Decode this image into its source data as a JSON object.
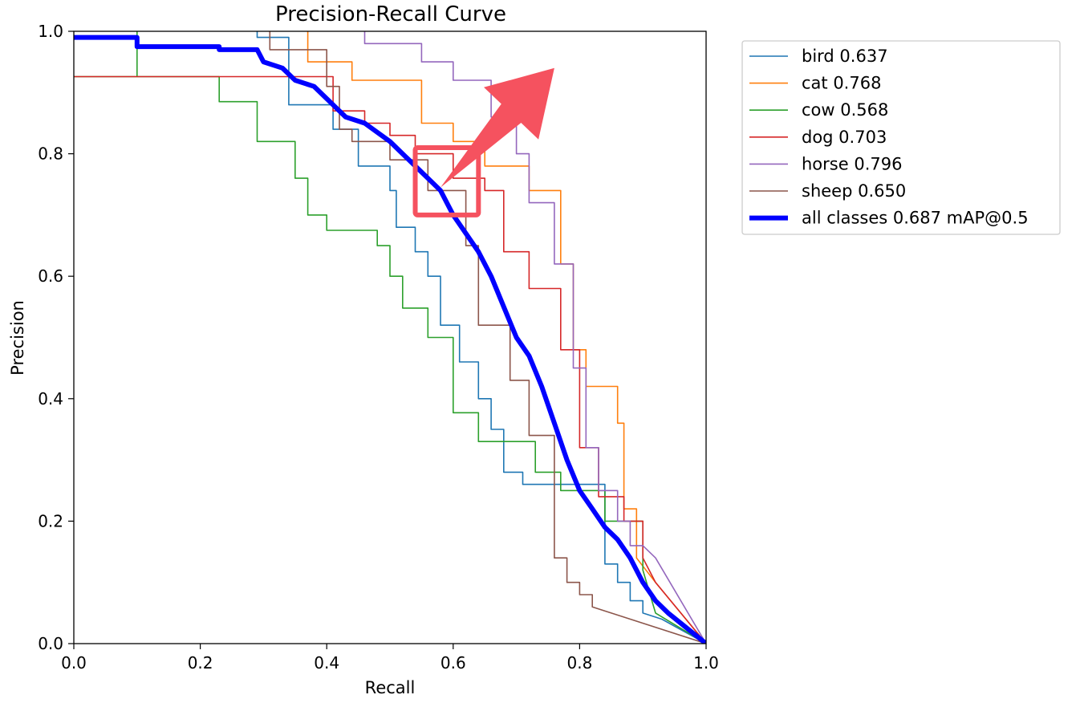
{
  "chart_data": {
    "type": "line",
    "title": "Precision-Recall Curve",
    "xlabel": "Recall",
    "ylabel": "Precision",
    "xlim": [
      0.0,
      1.0
    ],
    "ylim": [
      0.0,
      1.0
    ],
    "xticks": [
      "0.0",
      "0.2",
      "0.4",
      "0.6",
      "0.8",
      "1.0"
    ],
    "yticks": [
      "0.0",
      "0.2",
      "0.4",
      "0.6",
      "0.8",
      "1.0"
    ],
    "grid": false,
    "legend_position": "outside-top-right",
    "series": [
      {
        "name": "bird",
        "label": "bird 0.637",
        "color": "#1f77b4",
        "width": "thin",
        "points": [
          [
            0.29,
            1.0
          ],
          [
            0.29,
            0.99
          ],
          [
            0.34,
            0.99
          ],
          [
            0.34,
            0.88
          ],
          [
            0.41,
            0.88
          ],
          [
            0.41,
            0.84
          ],
          [
            0.45,
            0.84
          ],
          [
            0.45,
            0.78
          ],
          [
            0.5,
            0.78
          ],
          [
            0.5,
            0.74
          ],
          [
            0.51,
            0.74
          ],
          [
            0.51,
            0.68
          ],
          [
            0.54,
            0.68
          ],
          [
            0.54,
            0.64
          ],
          [
            0.56,
            0.64
          ],
          [
            0.56,
            0.6
          ],
          [
            0.58,
            0.6
          ],
          [
            0.58,
            0.52
          ],
          [
            0.61,
            0.52
          ],
          [
            0.61,
            0.46
          ],
          [
            0.64,
            0.46
          ],
          [
            0.64,
            0.4
          ],
          [
            0.66,
            0.4
          ],
          [
            0.66,
            0.35
          ],
          [
            0.68,
            0.35
          ],
          [
            0.68,
            0.28
          ],
          [
            0.71,
            0.28
          ],
          [
            0.71,
            0.26
          ],
          [
            0.84,
            0.26
          ],
          [
            0.84,
            0.13
          ],
          [
            0.86,
            0.13
          ],
          [
            0.86,
            0.1
          ],
          [
            0.88,
            0.1
          ],
          [
            0.88,
            0.07
          ],
          [
            0.9,
            0.07
          ],
          [
            0.9,
            0.05
          ],
          [
            0.93,
            0.04
          ],
          [
            1.0,
            0.0
          ]
        ]
      },
      {
        "name": "cat",
        "label": "cat 0.768",
        "color": "#ff7f0e",
        "width": "thin",
        "points": [
          [
            0.37,
            1.0
          ],
          [
            0.37,
            0.95
          ],
          [
            0.44,
            0.95
          ],
          [
            0.44,
            0.92
          ],
          [
            0.55,
            0.92
          ],
          [
            0.55,
            0.85
          ],
          [
            0.6,
            0.85
          ],
          [
            0.6,
            0.82
          ],
          [
            0.65,
            0.82
          ],
          [
            0.65,
            0.78
          ],
          [
            0.72,
            0.78
          ],
          [
            0.72,
            0.74
          ],
          [
            0.77,
            0.74
          ],
          [
            0.77,
            0.62
          ],
          [
            0.79,
            0.62
          ],
          [
            0.79,
            0.48
          ],
          [
            0.81,
            0.48
          ],
          [
            0.81,
            0.42
          ],
          [
            0.86,
            0.42
          ],
          [
            0.86,
            0.36
          ],
          [
            0.87,
            0.36
          ],
          [
            0.87,
            0.22
          ],
          [
            0.89,
            0.22
          ],
          [
            0.89,
            0.14
          ],
          [
            0.92,
            0.1
          ],
          [
            1.0,
            0.0
          ]
        ]
      },
      {
        "name": "cow",
        "label": "cow 0.568",
        "color": "#2ca02c",
        "width": "thin",
        "points": [
          [
            0.0,
            0.926
          ],
          [
            0.1,
            0.926
          ],
          [
            0.1,
            1.0
          ],
          [
            0.1,
            0.926
          ],
          [
            0.23,
            0.926
          ],
          [
            0.23,
            0.885
          ],
          [
            0.29,
            0.885
          ],
          [
            0.29,
            0.82
          ],
          [
            0.35,
            0.82
          ],
          [
            0.35,
            0.76
          ],
          [
            0.37,
            0.76
          ],
          [
            0.37,
            0.7
          ],
          [
            0.4,
            0.7
          ],
          [
            0.4,
            0.675
          ],
          [
            0.48,
            0.675
          ],
          [
            0.48,
            0.65
          ],
          [
            0.5,
            0.65
          ],
          [
            0.5,
            0.6
          ],
          [
            0.52,
            0.6
          ],
          [
            0.52,
            0.548
          ],
          [
            0.56,
            0.548
          ],
          [
            0.56,
            0.5
          ],
          [
            0.6,
            0.5
          ],
          [
            0.6,
            0.377
          ],
          [
            0.64,
            0.377
          ],
          [
            0.64,
            0.33
          ],
          [
            0.73,
            0.33
          ],
          [
            0.73,
            0.28
          ],
          [
            0.77,
            0.28
          ],
          [
            0.77,
            0.25
          ],
          [
            0.84,
            0.25
          ],
          [
            0.84,
            0.2
          ],
          [
            0.9,
            0.2
          ],
          [
            0.9,
            0.12
          ],
          [
            0.92,
            0.05
          ],
          [
            1.0,
            0.0
          ]
        ]
      },
      {
        "name": "dog",
        "label": "dog 0.703",
        "color": "#d62728",
        "width": "thin",
        "points": [
          [
            0.0,
            0.926
          ],
          [
            0.41,
            0.926
          ],
          [
            0.41,
            0.87
          ],
          [
            0.46,
            0.87
          ],
          [
            0.46,
            0.85
          ],
          [
            0.5,
            0.85
          ],
          [
            0.5,
            0.83
          ],
          [
            0.54,
            0.83
          ],
          [
            0.54,
            0.8
          ],
          [
            0.6,
            0.8
          ],
          [
            0.6,
            0.76
          ],
          [
            0.65,
            0.76
          ],
          [
            0.65,
            0.74
          ],
          [
            0.68,
            0.74
          ],
          [
            0.68,
            0.64
          ],
          [
            0.72,
            0.64
          ],
          [
            0.72,
            0.58
          ],
          [
            0.77,
            0.58
          ],
          [
            0.77,
            0.48
          ],
          [
            0.8,
            0.48
          ],
          [
            0.8,
            0.32
          ],
          [
            0.83,
            0.32
          ],
          [
            0.83,
            0.24
          ],
          [
            0.87,
            0.24
          ],
          [
            0.87,
            0.2
          ],
          [
            0.9,
            0.2
          ],
          [
            0.9,
            0.14
          ],
          [
            0.92,
            0.1
          ],
          [
            1.0,
            0.0
          ]
        ]
      },
      {
        "name": "horse",
        "label": "horse 0.796",
        "color": "#9467bd",
        "width": "thin",
        "points": [
          [
            0.46,
            1.0
          ],
          [
            0.46,
            0.98
          ],
          [
            0.55,
            0.98
          ],
          [
            0.55,
            0.95
          ],
          [
            0.6,
            0.95
          ],
          [
            0.6,
            0.92
          ],
          [
            0.66,
            0.92
          ],
          [
            0.66,
            0.86
          ],
          [
            0.7,
            0.86
          ],
          [
            0.7,
            0.8
          ],
          [
            0.72,
            0.8
          ],
          [
            0.72,
            0.72
          ],
          [
            0.76,
            0.72
          ],
          [
            0.76,
            0.62
          ],
          [
            0.79,
            0.62
          ],
          [
            0.79,
            0.45
          ],
          [
            0.81,
            0.45
          ],
          [
            0.81,
            0.32
          ],
          [
            0.83,
            0.32
          ],
          [
            0.83,
            0.25
          ],
          [
            0.86,
            0.25
          ],
          [
            0.86,
            0.2
          ],
          [
            0.88,
            0.2
          ],
          [
            0.88,
            0.16
          ],
          [
            0.9,
            0.16
          ],
          [
            0.92,
            0.14
          ],
          [
            1.0,
            0.0
          ]
        ]
      },
      {
        "name": "sheep",
        "label": "sheep 0.650",
        "color": "#8c564b",
        "width": "thin",
        "points": [
          [
            0.31,
            1.0
          ],
          [
            0.31,
            0.97
          ],
          [
            0.4,
            0.97
          ],
          [
            0.4,
            0.91
          ],
          [
            0.42,
            0.91
          ],
          [
            0.42,
            0.84
          ],
          [
            0.44,
            0.84
          ],
          [
            0.44,
            0.82
          ],
          [
            0.5,
            0.82
          ],
          [
            0.5,
            0.79
          ],
          [
            0.56,
            0.79
          ],
          [
            0.56,
            0.74
          ],
          [
            0.62,
            0.74
          ],
          [
            0.62,
            0.65
          ],
          [
            0.64,
            0.65
          ],
          [
            0.64,
            0.52
          ],
          [
            0.69,
            0.52
          ],
          [
            0.69,
            0.43
          ],
          [
            0.72,
            0.43
          ],
          [
            0.72,
            0.34
          ],
          [
            0.76,
            0.34
          ],
          [
            0.76,
            0.27
          ],
          [
            0.76,
            0.14
          ],
          [
            0.78,
            0.14
          ],
          [
            0.78,
            0.1
          ],
          [
            0.8,
            0.1
          ],
          [
            0.8,
            0.08
          ],
          [
            0.82,
            0.08
          ],
          [
            0.82,
            0.06
          ],
          [
            0.85,
            0.05
          ],
          [
            1.0,
            0.0
          ]
        ]
      },
      {
        "name": "all classes",
        "label": "all classes 0.687 mAP@0.5",
        "color": "#0000ff",
        "width": "thick",
        "points": [
          [
            0.0,
            0.99
          ],
          [
            0.1,
            0.99
          ],
          [
            0.1,
            0.975
          ],
          [
            0.23,
            0.975
          ],
          [
            0.23,
            0.97
          ],
          [
            0.29,
            0.97
          ],
          [
            0.3,
            0.95
          ],
          [
            0.33,
            0.94
          ],
          [
            0.35,
            0.92
          ],
          [
            0.38,
            0.91
          ],
          [
            0.41,
            0.88
          ],
          [
            0.43,
            0.86
          ],
          [
            0.46,
            0.85
          ],
          [
            0.5,
            0.82
          ],
          [
            0.53,
            0.79
          ],
          [
            0.56,
            0.76
          ],
          [
            0.58,
            0.74
          ],
          [
            0.6,
            0.7
          ],
          [
            0.62,
            0.67
          ],
          [
            0.64,
            0.64
          ],
          [
            0.66,
            0.6
          ],
          [
            0.68,
            0.55
          ],
          [
            0.7,
            0.5
          ],
          [
            0.72,
            0.47
          ],
          [
            0.74,
            0.42
          ],
          [
            0.76,
            0.36
          ],
          [
            0.78,
            0.3
          ],
          [
            0.8,
            0.25
          ],
          [
            0.82,
            0.22
          ],
          [
            0.84,
            0.19
          ],
          [
            0.86,
            0.17
          ],
          [
            0.88,
            0.14
          ],
          [
            0.9,
            0.1
          ],
          [
            0.92,
            0.07
          ],
          [
            0.94,
            0.05
          ],
          [
            1.0,
            0.0
          ]
        ]
      }
    ]
  },
  "annotations": {
    "highlight_color": "#f5525f",
    "highlight_box": {
      "recall": [
        0.54,
        0.64
      ],
      "precision": [
        0.7,
        0.81
      ]
    },
    "arrow": {
      "from": [
        0.58,
        0.745
      ],
      "to": [
        0.76,
        0.94
      ]
    }
  }
}
